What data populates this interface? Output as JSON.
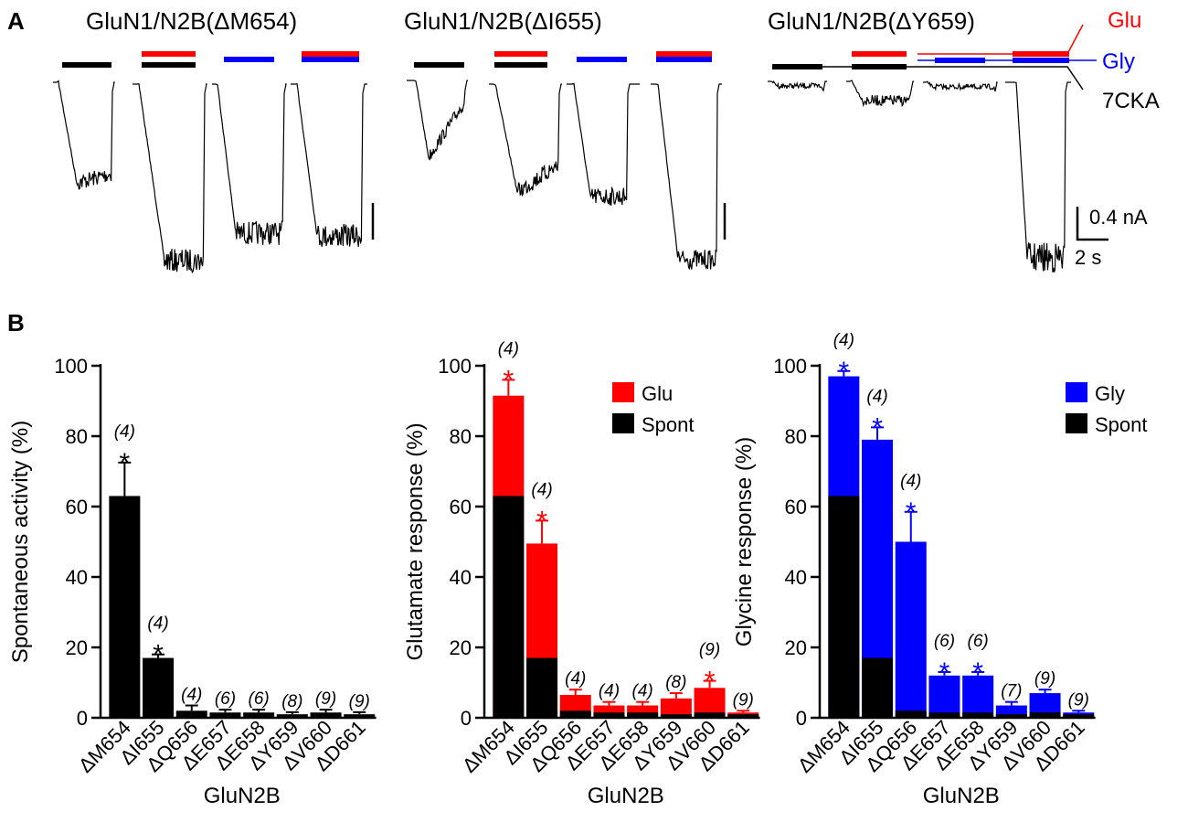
{
  "colors": {
    "glu": "#ff0000",
    "gly": "#0000ff",
    "spont": "#000000",
    "axis": "#000000"
  },
  "panel_a": {
    "label": "A",
    "titles": [
      "GluN1/N2B(ΔM654)",
      "GluN1/N2B(ΔI655)",
      "GluN1/N2B(ΔY659)"
    ],
    "legend": {
      "glu": "Glu",
      "gly": "Gly",
      "cka": "7CKA"
    },
    "scale": {
      "current": "0.4 nA",
      "time": "2 s"
    }
  },
  "panel_b": {
    "label": "B"
  },
  "chart_data": [
    {
      "type": "bar",
      "title": "",
      "xlabel": "GluN2B",
      "ylabel": "Spontaneous activity  (%)",
      "ylim": [
        0,
        100
      ],
      "yticks": [
        "0",
        "20",
        "40",
        "60",
        "80",
        "100"
      ],
      "categories": [
        "ΔM654",
        "ΔI655",
        "ΔQ656",
        "ΔE657",
        "ΔE658",
        "ΔY659",
        "ΔV660",
        "ΔD661"
      ],
      "series": [
        {
          "name": "Spont",
          "values": [
            63,
            17,
            2,
            1.5,
            1.5,
            1,
            1.5,
            1
          ],
          "errors": [
            9.5,
            1,
            1.5,
            0.8,
            0.8,
            0.6,
            0.8,
            0.6
          ]
        }
      ],
      "n_labels": [
        "(4)",
        "(4)",
        "(4)",
        "(6)",
        "(6)",
        "(8)",
        "(9)",
        "(9)"
      ],
      "significance": [
        "*",
        "*",
        "",
        "",
        "",
        "",
        "",
        ""
      ],
      "legend": []
    },
    {
      "type": "bar",
      "title": "",
      "xlabel": "GluN2B",
      "ylabel": "Glutamate response  (%)",
      "ylim": [
        0,
        100
      ],
      "yticks": [
        "0",
        "20",
        "40",
        "60",
        "80",
        "100"
      ],
      "categories": [
        "ΔM654",
        "ΔI655",
        "ΔQ656",
        "ΔE657",
        "ΔE658",
        "ΔY659",
        "ΔV660",
        "ΔD661"
      ],
      "series": [
        {
          "name": "Glu",
          "values": [
            91.5,
            49.5,
            6.5,
            3.5,
            3.5,
            5.5,
            8.5,
            1.5
          ],
          "errors": [
            4.5,
            6.5,
            1.5,
            1,
            1,
            1.5,
            2,
            0.5
          ]
        },
        {
          "name": "Spont",
          "values": [
            63,
            17,
            2,
            1.5,
            1.5,
            1,
            1.5,
            1
          ]
        }
      ],
      "n_labels": [
        "(4)",
        "(4)",
        "(4)",
        "(4)",
        "(4)",
        "(8)",
        "(9)",
        "(9)"
      ],
      "significance": [
        "*",
        "*",
        "",
        "",
        "",
        "",
        "*",
        ""
      ],
      "legend": [
        "Glu",
        "Spont"
      ]
    },
    {
      "type": "bar",
      "title": "",
      "xlabel": "GluN2B",
      "ylabel": "Glycine response  (%)",
      "ylim": [
        0,
        100
      ],
      "yticks": [
        "0",
        "20",
        "40",
        "60",
        "80",
        "100"
      ],
      "categories": [
        "ΔM654",
        "ΔI655",
        "ΔQ656",
        "ΔE657",
        "ΔE658",
        "ΔY659",
        "ΔV660",
        "ΔD661"
      ],
      "series": [
        {
          "name": "Gly",
          "values": [
            97,
            79,
            50,
            12,
            12,
            3.5,
            7,
            1.5
          ],
          "errors": [
            1.5,
            3.5,
            8.5,
            1,
            1,
            1,
            1,
            0.5
          ]
        },
        {
          "name": "Spont",
          "values": [
            63,
            17,
            2,
            1.5,
            1.5,
            1,
            1.5,
            1
          ]
        }
      ],
      "n_labels": [
        "(4)",
        "(4)",
        "(4)",
        "(6)",
        "(6)",
        "(7)",
        "(9)",
        "(9)"
      ],
      "significance": [
        "*",
        "*",
        "*",
        "*",
        "*",
        "",
        "",
        ""
      ],
      "legend": [
        "Gly",
        "Spont"
      ]
    }
  ]
}
